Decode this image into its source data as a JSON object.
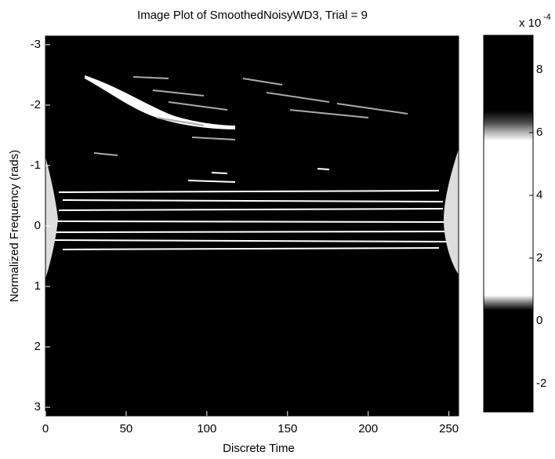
{
  "chart_data": {
    "type": "image",
    "title": "Image Plot of SmoothedNoisyWD3, Trial = 9",
    "x_label": "Discrete Time",
    "y_label": "Normalized Frequency (rads)",
    "xlim": [
      0,
      256
    ],
    "xticks": [
      0,
      50,
      100,
      150,
      200,
      250
    ],
    "ylim": [
      -3.1416,
      3.1416
    ],
    "yticks": [
      -3,
      -2,
      -1,
      0,
      1,
      2,
      3
    ],
    "y_reversed": true,
    "colorbar": {
      "clim": [
        -2.9,
        9.1
      ],
      "ticks": [
        -2,
        0,
        2,
        4,
        6,
        8
      ],
      "multiplier": "x 10",
      "exponent": "-4"
    }
  }
}
